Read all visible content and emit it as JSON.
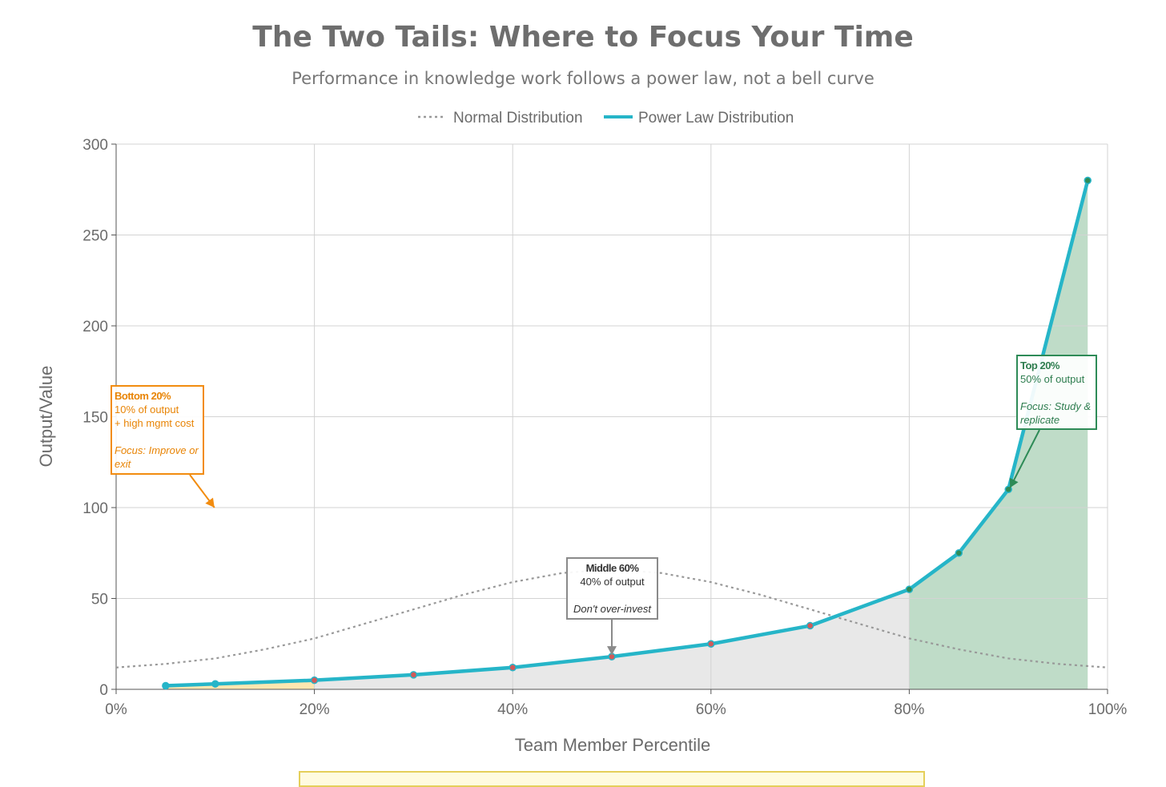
{
  "header": {
    "title": "The Two Tails: Where to Focus Your Time",
    "subtitle": "Performance in knowledge work follows a power law, not a bell curve"
  },
  "legend": {
    "normal_label": "Normal Distribution",
    "power_label": "Power Law Distribution"
  },
  "annotations": {
    "bottom": {
      "title": "Bottom 20%",
      "line1": "10% of output",
      "line2": "+ high mgmt cost",
      "focus": "Focus: Improve or exit"
    },
    "middle": {
      "title": "Middle 60%",
      "line1": "40% of output",
      "focus": "Don't over-invest"
    },
    "top": {
      "title": "Top 20%",
      "line1": "50% of output",
      "focus": "Focus: Study & replicate"
    }
  },
  "colors": {
    "power_line": "#26b5c8",
    "normal_line": "#999999",
    "top_fill": "#bfdcc8",
    "middle_fill": "#e8e8e8",
    "bottom_fill": "#fde7b0",
    "bottom_accent": "#f28c0f",
    "top_accent": "#2e8b57",
    "grid": "#d3d3d3"
  },
  "chart_data": {
    "type": "line",
    "title": "The Two Tails: Where to Focus Your Time",
    "subtitle": "Performance in knowledge work follows a power law, not a bell curve",
    "xlabel": "Team Member Percentile",
    "ylabel": "Output/Value",
    "xlim": [
      0,
      100
    ],
    "ylim": [
      0,
      300
    ],
    "x_ticks": [
      0,
      20,
      40,
      60,
      80,
      100
    ],
    "x_tick_labels": [
      "0%",
      "20%",
      "40%",
      "60%",
      "80%",
      "100%"
    ],
    "y_ticks": [
      0,
      50,
      100,
      150,
      200,
      250,
      300
    ],
    "y_tick_labels": [
      "0",
      "50",
      "100",
      "150",
      "200",
      "250",
      "300"
    ],
    "grid": true,
    "legend_position": "top-center",
    "series": [
      {
        "name": "Normal Distribution",
        "style": "dotted",
        "x": [
          0,
          5,
          10,
          15,
          20,
          25,
          30,
          35,
          40,
          45,
          50,
          55,
          60,
          65,
          70,
          75,
          80,
          85,
          90,
          95,
          100
        ],
        "y": [
          12,
          14,
          17,
          22,
          28,
          36,
          44,
          52,
          59,
          64,
          66,
          64,
          59,
          52,
          44,
          36,
          28,
          22,
          17,
          14,
          12
        ]
      },
      {
        "name": "Power Law Distribution",
        "style": "solid",
        "x": [
          5,
          10,
          20,
          30,
          40,
          50,
          60,
          70,
          80,
          85,
          90,
          98
        ],
        "y": [
          2,
          3,
          5,
          8,
          12,
          18,
          25,
          35,
          55,
          75,
          110,
          280
        ]
      }
    ],
    "regions": [
      {
        "segment": "bottom",
        "x_range": [
          5,
          20
        ]
      },
      {
        "segment": "middle",
        "x_range": [
          20,
          80
        ]
      },
      {
        "segment": "top",
        "x_range": [
          80,
          98
        ]
      }
    ]
  }
}
